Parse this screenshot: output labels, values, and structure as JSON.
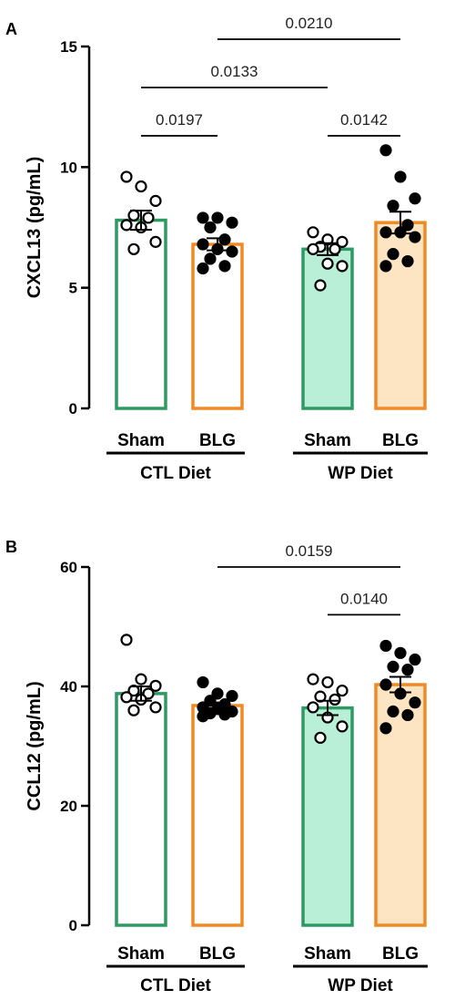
{
  "chart_data": [
    {
      "type": "bar",
      "panel": "A",
      "ylabel": "CXCL13 (pg/mL)",
      "ylim": [
        0,
        15
      ],
      "yticks": [
        0,
        5,
        10,
        15
      ],
      "categories": [
        "Sham",
        "BLG",
        "Sham",
        "BLG"
      ],
      "groups": [
        {
          "label": "CTL Diet",
          "categories": [
            0,
            1
          ]
        },
        {
          "label": "WP Diet",
          "categories": [
            2,
            3
          ]
        }
      ],
      "bars": [
        {
          "category": "Sham",
          "group": "CTL Diet",
          "mean": 7.8,
          "sem": 0.4,
          "fill": "#ffffff",
          "stroke": "#2e9a63",
          "points": [
            9.6,
            9.2,
            8.6,
            8.0,
            7.9,
            7.6,
            7.5,
            6.9,
            6.6
          ],
          "marker": "open"
        },
        {
          "category": "BLG",
          "group": "CTL Diet",
          "mean": 6.8,
          "sem": 0.25,
          "fill": "#ffffff",
          "stroke": "#f08a24",
          "points": [
            7.9,
            7.9,
            7.7,
            7.5,
            7.0,
            6.8,
            6.6,
            6.5,
            6.2,
            5.9,
            5.8
          ],
          "marker": "filled"
        },
        {
          "category": "Sham",
          "group": "WP Diet",
          "mean": 6.6,
          "sem": 0.25,
          "fill": "#b8efd6",
          "stroke": "#2e9a63",
          "points": [
            7.3,
            7.0,
            6.9,
            6.7,
            6.6,
            6.6,
            6.0,
            5.9,
            5.1
          ],
          "marker": "open"
        },
        {
          "category": "BLG",
          "group": "WP Diet",
          "mean": 7.7,
          "sem": 0.45,
          "fill": "#fde4c2",
          "stroke": "#f08a24",
          "points": [
            10.7,
            9.6,
            8.7,
            8.4,
            7.6,
            7.3,
            7.3,
            7.1,
            6.4,
            6.1,
            5.9
          ],
          "marker": "filled"
        }
      ],
      "comparisons": [
        {
          "from": 0,
          "to": 1,
          "p": "0.0197",
          "y": 11.3
        },
        {
          "from": 2,
          "to": 3,
          "p": "0.0142",
          "y": 11.3
        },
        {
          "from": 0,
          "to": 2,
          "p": "0.0133",
          "y": 13.3
        },
        {
          "from": 1,
          "to": 3,
          "p": "0.0210",
          "y": 15.3
        }
      ]
    },
    {
      "type": "bar",
      "panel": "B",
      "ylabel": "CCL12 (pg/mL)",
      "ylim": [
        0,
        60
      ],
      "yticks": [
        0,
        20,
        40,
        60
      ],
      "categories": [
        "Sham",
        "BLG",
        "Sham",
        "BLG"
      ],
      "groups": [
        {
          "label": "CTL Diet",
          "categories": [
            0,
            1
          ]
        },
        {
          "label": "WP Diet",
          "categories": [
            2,
            3
          ]
        }
      ],
      "bars": [
        {
          "category": "Sham",
          "group": "CTL Diet",
          "mean": 38.8,
          "sem": 1.2,
          "fill": "#ffffff",
          "stroke": "#2e9a63",
          "points": [
            47.8,
            41.2,
            40.1,
            39.3,
            38.8,
            38.2,
            37.8,
            36.5,
            36.0
          ],
          "marker": "open"
        },
        {
          "category": "BLG",
          "group": "CTL Diet",
          "mean": 36.8,
          "sem": 0.5,
          "fill": "#ffffff",
          "stroke": "#f08a24",
          "points": [
            40.7,
            38.8,
            38.4,
            37.6,
            37.0,
            36.5,
            36.2,
            35.8,
            35.5,
            35.3,
            35.0
          ],
          "marker": "filled"
        },
        {
          "category": "Sham",
          "group": "WP Diet",
          "mean": 36.4,
          "sem": 1.2,
          "fill": "#b8efd6",
          "stroke": "#2e9a63",
          "points": [
            41.2,
            40.7,
            39.3,
            38.3,
            37.8,
            36.5,
            34.8,
            33.3,
            31.4
          ],
          "marker": "open"
        },
        {
          "category": "BLG",
          "group": "WP Diet",
          "mean": 40.3,
          "sem": 1.3,
          "fill": "#fde4c2",
          "stroke": "#f08a24",
          "points": [
            46.8,
            45.6,
            44.5,
            43.3,
            42.8,
            40.3,
            38.8,
            37.3,
            35.8,
            35.2,
            33.0
          ],
          "marker": "filled"
        }
      ],
      "comparisons": [
        {
          "from": 2,
          "to": 3,
          "p": "0.0140",
          "y": 52.0
        },
        {
          "from": 1,
          "to": 3,
          "p": "0.0159",
          "y": 60.0
        }
      ]
    }
  ]
}
